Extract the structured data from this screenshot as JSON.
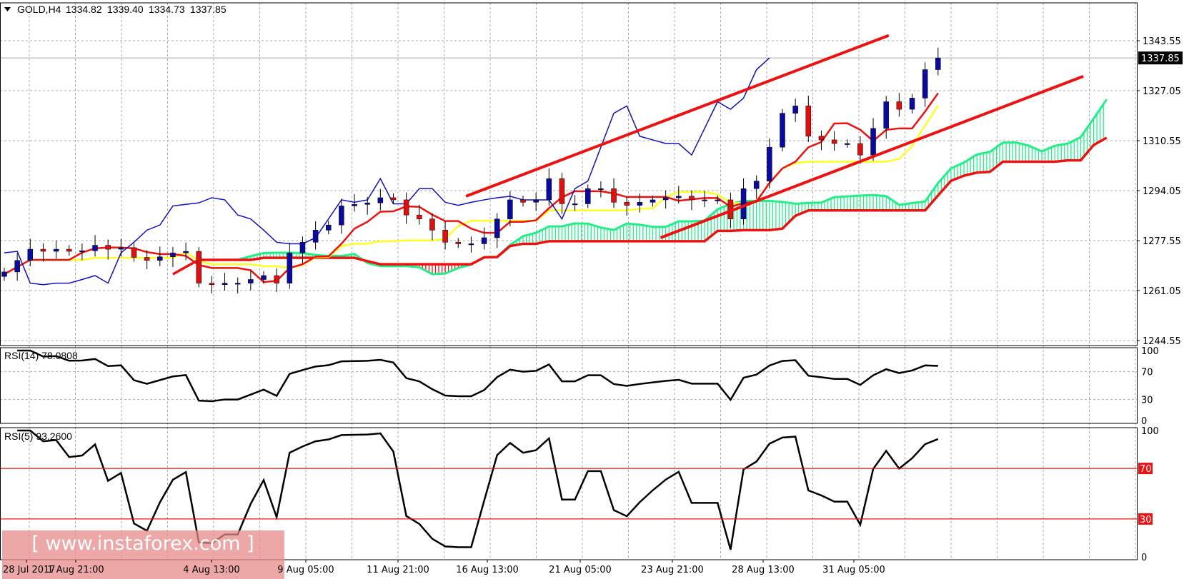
{
  "header": {
    "symbol": "GOLD,H4",
    "open": "1334.82",
    "high": "1339.40",
    "low": "1334.73",
    "close": "1337.85"
  },
  "watermark": "[ www.instaforex.com ]",
  "colors": {
    "bull": "#0a0aa0",
    "bear": "#e01010",
    "tenkan": "#ee1111",
    "kijun": "#ffff22",
    "chikou": "#1010c0",
    "cloud": "#22ee88",
    "cloud_bear": "#ee1111",
    "trendline": "#ee1111",
    "level": "#ee1111"
  },
  "chart_data": [
    {
      "type": "candlestick",
      "title": "GOLD,H4",
      "ylim": [
        1236,
        1352
      ],
      "yticks": [
        "1343.55",
        "1327.05",
        "1310.55",
        "1294.05",
        "1277.55",
        "1261.05",
        "1244.55"
      ],
      "current_price": "1337.85",
      "xticks": [
        "28 Jul 2017",
        "1 Aug 21:00",
        "4 Aug 13:00",
        "9 Aug 05:00",
        "11 Aug 21:00",
        "16 Aug 13:00",
        "21 Aug 05:00",
        "23 Aug 21:00",
        "28 Aug 13:00",
        "31 Aug 05:00"
      ],
      "closes": [
        1267.2,
        1271,
        1274.7,
        1274,
        1274.7,
        1274,
        1274.2,
        1276,
        1274.7,
        1275.2,
        1272,
        1271,
        1272.2,
        1273.5,
        1274,
        1263.5,
        1263,
        1263.5,
        1263.5,
        1264.7,
        1266,
        1263.5,
        1273.5,
        1277,
        1281,
        1282.7,
        1289,
        1289.5,
        1290,
        1291.7,
        1291,
        1286,
        1284.7,
        1281,
        1277,
        1276.5,
        1276.5,
        1278.5,
        1284.7,
        1291,
        1290.2,
        1291,
        1298,
        1289.7,
        1289.7,
        1294.7,
        1294.7,
        1290.2,
        1289.2,
        1290.2,
        1291,
        1291.7,
        1292.2,
        1291,
        1291,
        1291,
        1284.7,
        1294.7,
        1297.2,
        1308.4,
        1319.6,
        1322,
        1312,
        1310.8,
        1309.6,
        1309.6,
        1305.8,
        1314.6,
        1323.4,
        1320.9,
        1324.6,
        1334,
        1337.85
      ],
      "indicators": [
        "Ichimoku Kinko Hyo (tenkan, kijun, chikou, senkou span A/B cloud)"
      ],
      "trendlines": [
        {
          "from": {
            "bar": 35.6,
            "price": 1292.2
          },
          "to": {
            "bar": 68.2,
            "price": 1345.3
          }
        },
        {
          "from": {
            "bar": 50.6,
            "price": 1278.5
          },
          "to": {
            "bar": 83.2,
            "price": 1331.8
          }
        }
      ]
    },
    {
      "type": "line",
      "title": "RSI(14) 78.0808",
      "ylim": [
        0,
        100
      ],
      "yticks": [
        "100",
        "70",
        "30",
        "0"
      ],
      "last": 78.0808
    },
    {
      "type": "line",
      "title": "RSI(5) 93.2600",
      "ylim": [
        0,
        100
      ],
      "yticks": [
        "100",
        "0"
      ],
      "levels": [
        "70",
        "30"
      ],
      "last": 93.26
    }
  ]
}
